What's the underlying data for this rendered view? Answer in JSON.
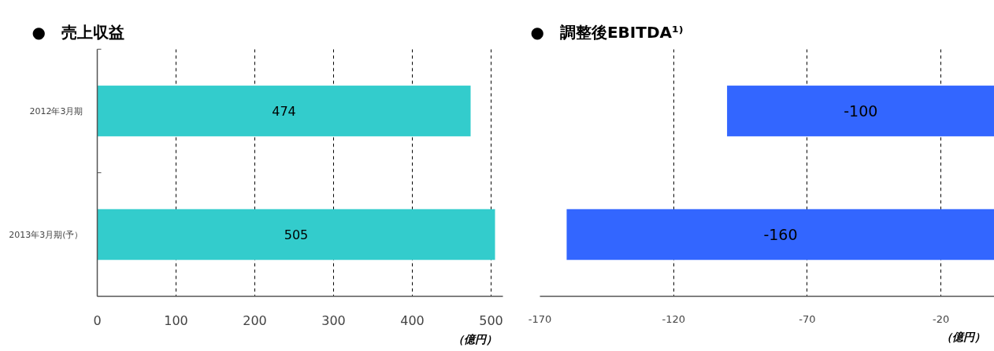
{
  "chart_data": [
    {
      "type": "bar",
      "orientation": "horizontal",
      "title": "●　売上収益",
      "xlabel": "（億円）",
      "categories": [
        "2012年3月期",
        "2013年3月期(予）"
      ],
      "values": [
        474,
        505
      ],
      "color": "#33cccc",
      "xlim": [
        0,
        515
      ],
      "xticks": [
        0,
        100,
        200,
        300,
        400,
        500
      ],
      "grid": "x",
      "data_labels": true
    },
    {
      "type": "bar",
      "orientation": "horizontal",
      "title": "●　調整後EBITDA¹⁾",
      "xlabel": "（億円）",
      "categories": [
        null,
        null
      ],
      "values": [
        -100,
        -160
      ],
      "color": "#3366ff",
      "xlim": [
        -170,
        0
      ],
      "xticks": [
        -170,
        -120,
        -70,
        -20
      ],
      "grid": "x",
      "data_labels": true,
      "tick_labels": "x"
    }
  ]
}
